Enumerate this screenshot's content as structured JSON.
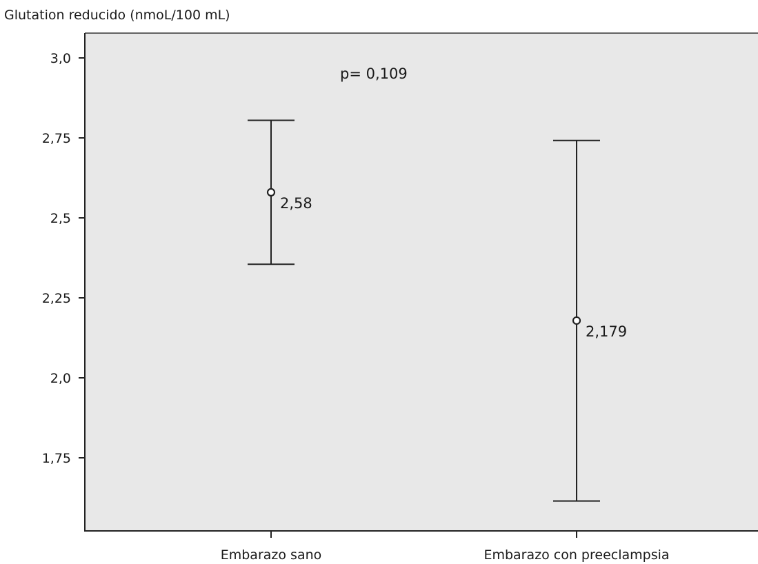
{
  "chart_data": {
    "type": "errorbar",
    "title": "",
    "xlabel": "",
    "ylabel": "Glutation reducido (nmoL/100 mL)",
    "ylim": [
      1.525,
      3.0
    ],
    "yticks": [
      3.0,
      2.75,
      2.5,
      2.25,
      2.0,
      1.75
    ],
    "ytick_labels": [
      "3,0",
      "2,75",
      "2,5",
      "2,25",
      "2,0",
      "1,75"
    ],
    "categories": [
      "Embarazo sano",
      "Embarazo con preeclampsia"
    ],
    "points": [
      {
        "category": "Embarazo sano",
        "mean": 2.58,
        "lower": 2.355,
        "upper": 2.805,
        "label": "2,58"
      },
      {
        "category": "Embarazo con preeclampsia",
        "mean": 2.179,
        "lower": 1.615,
        "upper": 2.742,
        "label": "2,179"
      }
    ],
    "annotation": "p= 0,109",
    "grid": false,
    "legend": "none",
    "colors": {
      "plot_background": "#e8e8e8",
      "marks": "#222222",
      "text": "#1a1a1a"
    }
  }
}
